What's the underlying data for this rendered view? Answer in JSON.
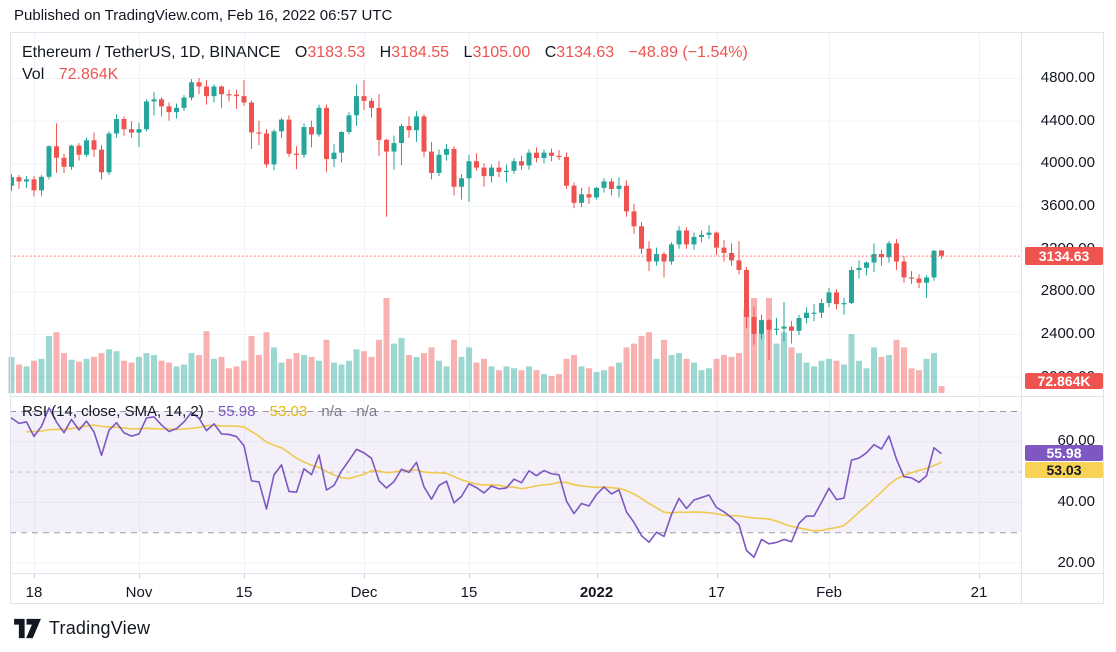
{
  "published_bar": {
    "text": "Published on TradingView.com, Feb 16, 2022 06:57 UTC"
  },
  "legend": {
    "symbol": "Ethereum / TetherUS, 1D, BINANCE",
    "open_label": "O",
    "open": "3183.53",
    "high_label": "H",
    "high": "3184.55",
    "low_label": "L",
    "low": "3105.00",
    "close_label": "C",
    "close": "3134.63",
    "change": "−48.89 (−1.54%)",
    "vol_label": "Vol",
    "vol_value": "72.864K"
  },
  "rsi_legend": {
    "title": "RSI (14, close, SMA, 14, 2)",
    "rsi_value": "55.98",
    "sma_value": "53.03",
    "na1": "n/a",
    "na2": "n/a"
  },
  "price_axis": {
    "ticks": [
      "4800.00",
      "4400.00",
      "4000.00",
      "3600.00",
      "3200.00",
      "2800.00",
      "2400.00",
      "2000.00"
    ],
    "tick_values": [
      4800,
      4400,
      4000,
      3600,
      3200,
      2800,
      2400,
      2000
    ],
    "price_badge": "3134.63",
    "volume_badge": "72.864K"
  },
  "rsi_axis": {
    "ticks": [
      "60.00",
      "40.00",
      "20.00"
    ],
    "tick_values": [
      60,
      40,
      20
    ],
    "rsi_badge": "55.98",
    "sma_badge": "53.03"
  },
  "time_axis": {
    "labels": [
      {
        "text": "18",
        "day": 0,
        "bold": false
      },
      {
        "text": "Nov",
        "day": 14,
        "bold": false
      },
      {
        "text": "15",
        "day": 28,
        "bold": false
      },
      {
        "text": "Dec",
        "day": 44,
        "bold": false
      },
      {
        "text": "15",
        "day": 58,
        "bold": false
      },
      {
        "text": "2022",
        "day": 75,
        "bold": true
      },
      {
        "text": "17",
        "day": 91,
        "bold": false
      },
      {
        "text": "Feb",
        "day": 106,
        "bold": false
      },
      {
        "text": "21",
        "day": 126,
        "bold": false
      }
    ]
  },
  "footer": {
    "brand": "TradingView"
  },
  "colors": {
    "up": "#26a69a",
    "down": "#ef5350",
    "up_vol": "rgba(38,166,154,0.45)",
    "down_vol": "rgba(239,83,80,0.45)",
    "rsi_line": "#7e57c2",
    "rsi_sma_line": "#f0c94c",
    "badge_red": "#ef5350",
    "badge_purple": "#7e57c2",
    "badge_yellow": "#f8d254",
    "grid": "#f0f3fa",
    "border": "#e0e3eb",
    "band": "rgba(126,87,194,0.09)",
    "level_dash": "rgba(105,108,120,0.65)",
    "mid_dash": "rgba(120,123,134,0.4)",
    "price_line": "#ef5350",
    "text": "#131722",
    "muted": "#787b86"
  },
  "chart_data": {
    "type": "candlestick",
    "title": "Ethereum / TetherUS, 1D, BINANCE",
    "interval": "1D",
    "exchange": "BINANCE",
    "last_price": 3134.63,
    "last_change": -48.89,
    "last_change_pct": -1.54,
    "last_volume_k": 72.864,
    "price_axis_range_labels": [
      4800,
      2000
    ],
    "rsi": {
      "period": 14,
      "source": "close",
      "smoothing": "SMA",
      "smoothing_period": 14,
      "value": 55.98,
      "sma_value": 53.03,
      "levels": [
        70,
        50,
        30
      ]
    },
    "warmup_count": 28,
    "candles_format": [
      "open",
      "high",
      "low",
      "close",
      "volume_k"
    ],
    "candles": [
      [
        3330,
        3343,
        2927,
        2977,
        520
      ],
      [
        2977,
        3030,
        2651,
        2760,
        620
      ],
      [
        2760,
        3090,
        2740,
        3076,
        540
      ],
      [
        3076,
        3180,
        3020,
        3155,
        430
      ],
      [
        3155,
        3172,
        2890,
        2930,
        460
      ],
      [
        2930,
        2975,
        2820,
        2925,
        380
      ],
      [
        2925,
        3090,
        2900,
        3065,
        360
      ],
      [
        3065,
        3080,
        2880,
        2930,
        370
      ],
      [
        2930,
        2965,
        2790,
        2850,
        400
      ],
      [
        2850,
        3030,
        2840,
        3000,
        380
      ],
      [
        3000,
        3330,
        2990,
        3310,
        520
      ],
      [
        3310,
        3445,
        3255,
        3390,
        480
      ],
      [
        3390,
        3480,
        3340,
        3420,
        400
      ],
      [
        3420,
        3430,
        3245,
        3310,
        380
      ],
      [
        3310,
        3400,
        3155,
        3380,
        420
      ],
      [
        3380,
        3545,
        3340,
        3520,
        440
      ],
      [
        3520,
        3640,
        3460,
        3575,
        430
      ],
      [
        3575,
        3665,
        3500,
        3590,
        400
      ],
      [
        3590,
        3675,
        3490,
        3560,
        380
      ],
      [
        3560,
        3630,
        3500,
        3580,
        320
      ],
      [
        3580,
        3610,
        3370,
        3415,
        360
      ],
      [
        3415,
        3570,
        3390,
        3545,
        340
      ],
      [
        3545,
        3590,
        3420,
        3490,
        330
      ],
      [
        3490,
        3640,
        3440,
        3605,
        360
      ],
      [
        3605,
        3820,
        3570,
        3790,
        420
      ],
      [
        3790,
        3900,
        3740,
        3870,
        380
      ],
      [
        3870,
        3890,
        3760,
        3830,
        300
      ],
      [
        3830,
        3880,
        3770,
        3850,
        280
      ],
      [
        3850,
        3880,
        3690,
        3747,
        340
      ],
      [
        3747,
        3890,
        3695,
        3874,
        360
      ],
      [
        3874,
        4170,
        3850,
        4160,
        600
      ],
      [
        4160,
        4375,
        3912,
        4052,
        640
      ],
      [
        4052,
        4090,
        3910,
        3967,
        420
      ],
      [
        3967,
        4175,
        3940,
        4166,
        350
      ],
      [
        4166,
        4190,
        4026,
        4080,
        330
      ],
      [
        4080,
        4240,
        4060,
        4216,
        360
      ],
      [
        4216,
        4290,
        4060,
        4128,
        380
      ],
      [
        4128,
        4170,
        3850,
        3916,
        420
      ],
      [
        3916,
        4300,
        3890,
        4280,
        460
      ],
      [
        4280,
        4460,
        4240,
        4416,
        440
      ],
      [
        4416,
        4440,
        4260,
        4320,
        340
      ],
      [
        4320,
        4395,
        4240,
        4288,
        320
      ],
      [
        4288,
        4380,
        4150,
        4320,
        380
      ],
      [
        4320,
        4600,
        4300,
        4580,
        420
      ],
      [
        4580,
        4670,
        4450,
        4600,
        400
      ],
      [
        4600,
        4620,
        4440,
        4534,
        340
      ],
      [
        4534,
        4570,
        4400,
        4480,
        320
      ],
      [
        4480,
        4560,
        4420,
        4520,
        280
      ],
      [
        4520,
        4640,
        4490,
        4616,
        300
      ],
      [
        4616,
        4790,
        4590,
        4760,
        420
      ],
      [
        4760,
        4800,
        4650,
        4720,
        400
      ],
      [
        4720,
        4780,
        4550,
        4630,
        650
      ],
      [
        4630,
        4740,
        4570,
        4720,
        360
      ],
      [
        4720,
        4730,
        4520,
        4648,
        380
      ],
      [
        4648,
        4690,
        4580,
        4644,
        260
      ],
      [
        4644,
        4690,
        4510,
        4630,
        280
      ],
      [
        4630,
        4780,
        4540,
        4570,
        340
      ],
      [
        4570,
        4590,
        4135,
        4290,
        600
      ],
      [
        4290,
        4400,
        4170,
        4280,
        400
      ],
      [
        4280,
        4320,
        3960,
        3990,
        640
      ],
      [
        3990,
        4320,
        3935,
        4300,
        480
      ],
      [
        4300,
        4425,
        4240,
        4410,
        320
      ],
      [
        4410,
        4450,
        4060,
        4090,
        360
      ],
      [
        4090,
        4160,
        3945,
        4080,
        420
      ],
      [
        4080,
        4375,
        4050,
        4340,
        400
      ],
      [
        4340,
        4400,
        4150,
        4270,
        380
      ],
      [
        4270,
        4550,
        4250,
        4520,
        340
      ],
      [
        4520,
        4550,
        3920,
        4040,
        560
      ],
      [
        4040,
        4180,
        3965,
        4100,
        320
      ],
      [
        4100,
        4300,
        4010,
        4294,
        300
      ],
      [
        4294,
        4480,
        4270,
        4450,
        340
      ],
      [
        4450,
        4740,
        4350,
        4630,
        460
      ],
      [
        4630,
        4780,
        4500,
        4586,
        440
      ],
      [
        4586,
        4610,
        4430,
        4520,
        380
      ],
      [
        4520,
        4650,
        4070,
        4220,
        560
      ],
      [
        4220,
        4230,
        3500,
        4110,
        1400
      ],
      [
        4110,
        4260,
        3940,
        4190,
        520
      ],
      [
        4190,
        4370,
        3982,
        4350,
        580
      ],
      [
        4350,
        4440,
        4240,
        4310,
        400
      ],
      [
        4310,
        4490,
        4200,
        4440,
        380
      ],
      [
        4440,
        4460,
        4060,
        4110,
        420
      ],
      [
        4110,
        4200,
        3850,
        3910,
        480
      ],
      [
        3910,
        4130,
        3880,
        4080,
        340
      ],
      [
        4080,
        4180,
        4025,
        4135,
        280
      ],
      [
        4135,
        4160,
        3700,
        3780,
        560
      ],
      [
        3780,
        3900,
        3660,
        3860,
        380
      ],
      [
        3860,
        4080,
        3640,
        4020,
        480
      ],
      [
        4020,
        4095,
        3930,
        3960,
        320
      ],
      [
        3960,
        4000,
        3780,
        3880,
        360
      ],
      [
        3880,
        3990,
        3820,
        3960,
        280
      ],
      [
        3960,
        4020,
        3870,
        3920,
        240
      ],
      [
        3920,
        3990,
        3820,
        3930,
        280
      ],
      [
        3930,
        4050,
        3900,
        4020,
        260
      ],
      [
        4020,
        4070,
        3940,
        3980,
        240
      ],
      [
        3980,
        4130,
        3940,
        4100,
        280
      ],
      [
        4100,
        4150,
        4010,
        4050,
        240
      ],
      [
        4050,
        4130,
        4000,
        4100,
        200
      ],
      [
        4100,
        4140,
        4020,
        4070,
        180
      ],
      [
        4070,
        4125,
        4030,
        4060,
        200
      ],
      [
        4060,
        4100,
        3760,
        3790,
        360
      ],
      [
        3790,
        3820,
        3580,
        3630,
        400
      ],
      [
        3630,
        3770,
        3590,
        3710,
        280
      ],
      [
        3710,
        3780,
        3620,
        3680,
        260
      ],
      [
        3680,
        3780,
        3660,
        3770,
        220
      ],
      [
        3770,
        3860,
        3725,
        3830,
        240
      ],
      [
        3830,
        3860,
        3700,
        3760,
        280
      ],
      [
        3760,
        3870,
        3680,
        3790,
        320
      ],
      [
        3790,
        3840,
        3500,
        3550,
        480
      ],
      [
        3550,
        3620,
        3340,
        3410,
        520
      ],
      [
        3410,
        3450,
        3150,
        3200,
        600
      ],
      [
        3200,
        3270,
        2990,
        3080,
        640
      ],
      [
        3080,
        3210,
        3040,
        3150,
        360
      ],
      [
        3150,
        3170,
        2930,
        3080,
        560
      ],
      [
        3080,
        3260,
        3050,
        3240,
        400
      ],
      [
        3240,
        3410,
        3200,
        3370,
        420
      ],
      [
        3370,
        3400,
        3200,
        3240,
        360
      ],
      [
        3240,
        3350,
        3190,
        3310,
        320
      ],
      [
        3310,
        3370,
        3260,
        3330,
        240
      ],
      [
        3330,
        3420,
        3290,
        3350,
        260
      ],
      [
        3350,
        3360,
        3140,
        3210,
        360
      ],
      [
        3210,
        3280,
        3080,
        3160,
        400
      ],
      [
        3160,
        3250,
        3040,
        3090,
        380
      ],
      [
        3090,
        3270,
        2960,
        3000,
        420
      ],
      [
        3000,
        3030,
        2460,
        2560,
        900
      ],
      [
        2560,
        2650,
        2300,
        2400,
        1100
      ],
      [
        2400,
        2580,
        2350,
        2530,
        620
      ],
      [
        2530,
        2540,
        2160,
        2440,
        1000
      ],
      [
        2440,
        2550,
        2390,
        2450,
        520
      ],
      [
        2450,
        2700,
        2330,
        2470,
        640
      ],
      [
        2470,
        2520,
        2310,
        2430,
        480
      ],
      [
        2430,
        2580,
        2390,
        2550,
        420
      ],
      [
        2550,
        2650,
        2500,
        2600,
        320
      ],
      [
        2600,
        2680,
        2520,
        2600,
        280
      ],
      [
        2600,
        2730,
        2550,
        2690,
        340
      ],
      [
        2690,
        2830,
        2650,
        2790,
        360
      ],
      [
        2790,
        2820,
        2630,
        2680,
        340
      ],
      [
        2680,
        2740,
        2580,
        2690,
        300
      ],
      [
        2690,
        3030,
        2680,
        3000,
        620
      ],
      [
        3000,
        3090,
        2920,
        3020,
        340
      ],
      [
        3020,
        3080,
        2950,
        3070,
        260
      ],
      [
        3070,
        3250,
        2980,
        3150,
        480
      ],
      [
        3150,
        3190,
        3040,
        3120,
        380
      ],
      [
        3120,
        3270,
        3070,
        3250,
        400
      ],
      [
        3250,
        3290,
        3000,
        3080,
        560
      ],
      [
        3080,
        3130,
        2880,
        2930,
        480
      ],
      [
        2930,
        2990,
        2870,
        2920,
        260
      ],
      [
        2920,
        2960,
        2830,
        2880,
        240
      ],
      [
        2880,
        2950,
        2740,
        2930,
        360
      ],
      [
        2930,
        3190,
        2900,
        3180,
        420
      ],
      [
        3183.53,
        3184.55,
        3105,
        3134.63,
        72.864
      ]
    ]
  }
}
